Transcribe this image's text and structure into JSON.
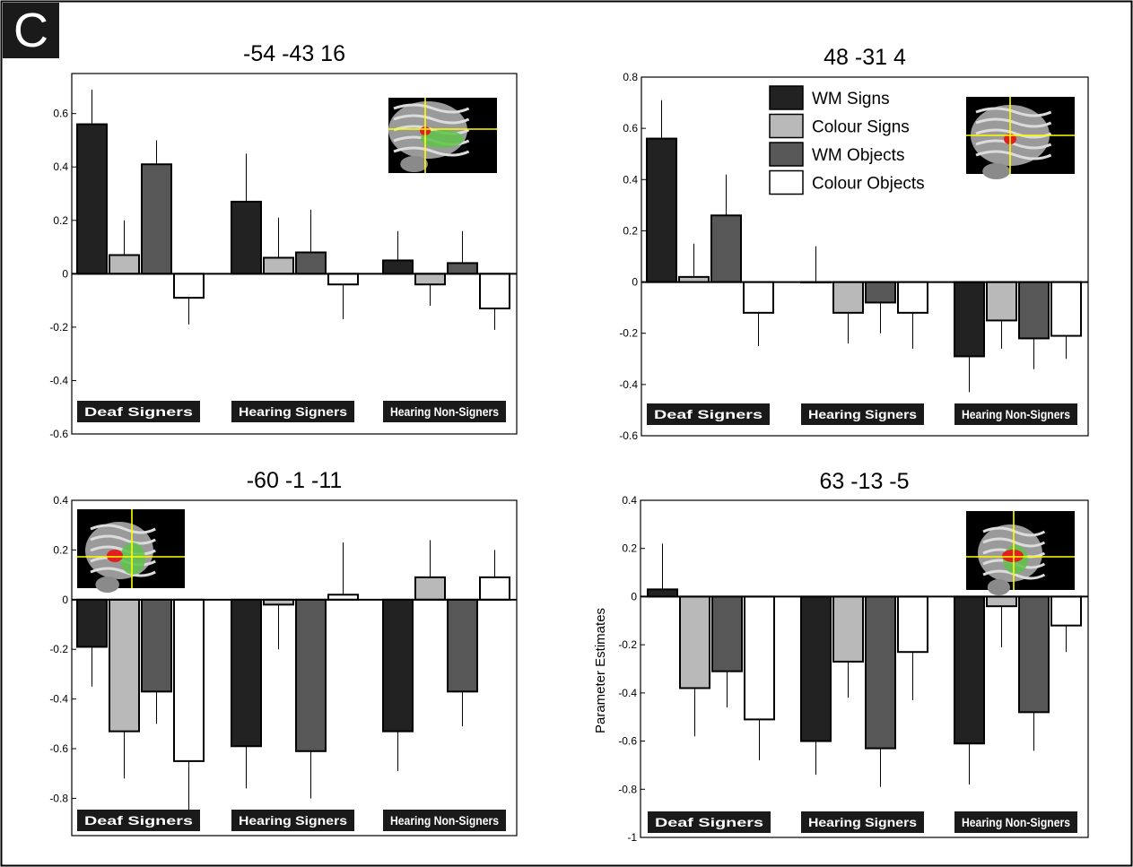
{
  "panel_label": "C",
  "groups": [
    "Deaf Signers",
    "Hearing Signers",
    "Hearing Non-Signers"
  ],
  "legend": [
    {
      "name": "WM Signs",
      "color": "#222222"
    },
    {
      "name": "Colour Signs",
      "color": "#b9b9b9"
    },
    {
      "name": "WM Objects",
      "color": "#575757"
    },
    {
      "name": "Colour Objects",
      "color": "#ffffff"
    }
  ],
  "ylabel": "Parameter Estimates",
  "brain_inset_colors": {
    "background": "#000000",
    "crosshair": "#ffff00",
    "cluster": "#e0201e",
    "overlay": "#5fc24a"
  },
  "chart_data": [
    {
      "type": "bar",
      "title": "-54 -43 16",
      "categories": [
        "Deaf Signers",
        "Hearing Signers",
        "Hearing Non-Signers"
      ],
      "ylim": [
        -0.6,
        0.75
      ],
      "yticks": [
        "-0.6",
        "-0.4",
        "-0.2",
        "0",
        "0.2",
        "0.4",
        "0.6"
      ],
      "ylabel": "",
      "legend_visible": false,
      "inset_position": "top-right",
      "series": [
        {
          "name": "WM Signs",
          "values": [
            0.56,
            0.27,
            0.05
          ],
          "errors": [
            0.13,
            0.18,
            0.11
          ]
        },
        {
          "name": "Colour Signs",
          "values": [
            0.07,
            0.06,
            -0.04
          ],
          "errors": [
            0.13,
            0.15,
            0.08
          ]
        },
        {
          "name": "WM Objects",
          "values": [
            0.41,
            0.08,
            0.04
          ],
          "errors": [
            0.09,
            0.16,
            0.12
          ]
        },
        {
          "name": "Colour Objects",
          "values": [
            -0.09,
            -0.04,
            -0.13
          ],
          "errors": [
            0.1,
            0.13,
            0.08
          ]
        }
      ]
    },
    {
      "type": "bar",
      "title": "48 -31 4",
      "categories": [
        "Deaf Signers",
        "Hearing Signers",
        "Hearing Non-Signers"
      ],
      "ylim": [
        -0.6,
        0.8
      ],
      "yticks": [
        "-0.6",
        "-0.4",
        "-0.2",
        "0",
        "0.2",
        "0.4",
        "0.6",
        "0.8"
      ],
      "ylabel": "",
      "legend_visible": true,
      "inset_position": "top-right",
      "series": [
        {
          "name": "WM Signs",
          "values": [
            0.56,
            0.0,
            -0.29
          ],
          "errors": [
            0.15,
            0.14,
            0.14
          ]
        },
        {
          "name": "Colour Signs",
          "values": [
            0.02,
            -0.12,
            -0.15
          ],
          "errors": [
            0.13,
            0.12,
            0.11
          ]
        },
        {
          "name": "WM Objects",
          "values": [
            0.26,
            -0.08,
            -0.22
          ],
          "errors": [
            0.16,
            0.12,
            0.12
          ]
        },
        {
          "name": "Colour Objects",
          "values": [
            -0.12,
            -0.12,
            -0.21
          ],
          "errors": [
            0.13,
            0.14,
            0.09
          ]
        }
      ]
    },
    {
      "type": "bar",
      "title": "-60 -1 -11",
      "categories": [
        "Deaf Signers",
        "Hearing Signers",
        "Hearing Non-Signers"
      ],
      "ylim": [
        -0.95,
        0.4
      ],
      "yticks": [
        "-0.8",
        "-0.6",
        "-0.4",
        "-0.2",
        "0",
        "0.2",
        "0.4"
      ],
      "ylabel": "",
      "legend_visible": false,
      "inset_position": "top-left",
      "series": [
        {
          "name": "WM Signs",
          "values": [
            -0.19,
            -0.59,
            -0.53
          ],
          "errors": [
            0.16,
            0.17,
            0.16
          ]
        },
        {
          "name": "Colour Signs",
          "values": [
            -0.53,
            -0.02,
            0.09
          ],
          "errors": [
            0.19,
            0.18,
            0.15
          ]
        },
        {
          "name": "WM Objects",
          "values": [
            -0.37,
            -0.61,
            -0.37
          ],
          "errors": [
            0.13,
            0.19,
            0.14
          ]
        },
        {
          "name": "Colour Objects",
          "values": [
            -0.65,
            0.02,
            0.09
          ],
          "errors": [
            0.23,
            0.21,
            0.11
          ]
        }
      ]
    },
    {
      "type": "bar",
      "title": "63 -13 -5",
      "categories": [
        "Deaf Signers",
        "Hearing Signers",
        "Hearing Non-Signers"
      ],
      "ylim": [
        -1,
        0.4
      ],
      "yticks": [
        "-1",
        "-0.8",
        "-0.6",
        "-0.4",
        "-0.2",
        "0",
        "0.2",
        "0.4"
      ],
      "ylabel": "Parameter Estimates",
      "legend_visible": false,
      "inset_position": "top-right",
      "series": [
        {
          "name": "WM Signs",
          "values": [
            0.03,
            -0.6,
            -0.61
          ],
          "errors": [
            0.19,
            0.14,
            0.17
          ]
        },
        {
          "name": "Colour Signs",
          "values": [
            -0.38,
            -0.27,
            -0.04
          ],
          "errors": [
            0.2,
            0.15,
            0.17
          ]
        },
        {
          "name": "WM Objects",
          "values": [
            -0.31,
            -0.63,
            -0.48
          ],
          "errors": [
            0.15,
            0.16,
            0.16
          ]
        },
        {
          "name": "Colour Objects",
          "values": [
            -0.51,
            -0.23,
            -0.12
          ],
          "errors": [
            0.17,
            0.2,
            0.11
          ]
        }
      ]
    }
  ]
}
